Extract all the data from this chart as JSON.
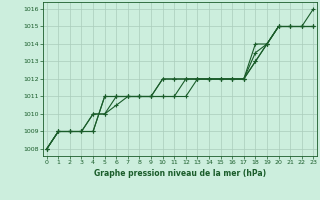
{
  "title": "Graphe pression niveau de la mer (hPa)",
  "bg_color": "#cceedd",
  "grid_color": "#aaccbb",
  "line_color": "#1a5c2a",
  "x_ticks": [
    0,
    1,
    2,
    3,
    4,
    5,
    6,
    7,
    8,
    9,
    10,
    11,
    12,
    13,
    14,
    15,
    16,
    17,
    18,
    19,
    20,
    21,
    22,
    23
  ],
  "y_ticks": [
    1008,
    1009,
    1010,
    1011,
    1012,
    1013,
    1014,
    1015,
    1016
  ],
  "ylim": [
    1007.6,
    1016.4
  ],
  "xlim": [
    -0.3,
    23.3
  ],
  "series": [
    [
      1008.0,
      1009.0,
      1009.0,
      1009.0,
      1009.0,
      1011.0,
      1011.0,
      1011.0,
      1011.0,
      1011.0,
      1012.0,
      1012.0,
      1012.0,
      1012.0,
      1012.0,
      1012.0,
      1012.0,
      1012.0,
      1013.5,
      1014.0,
      1015.0,
      1015.0,
      1015.0,
      1016.0
    ],
    [
      1008.0,
      1009.0,
      1009.0,
      1009.0,
      1010.0,
      1010.0,
      1010.5,
      1011.0,
      1011.0,
      1011.0,
      1011.0,
      1011.0,
      1012.0,
      1012.0,
      1012.0,
      1012.0,
      1012.0,
      1012.0,
      1014.0,
      1014.0,
      1015.0,
      1015.0,
      1015.0,
      1015.0
    ],
    [
      1008.0,
      1009.0,
      1009.0,
      1009.0,
      1009.0,
      1011.0,
      1011.0,
      1011.0,
      1011.0,
      1011.0,
      1011.0,
      1011.0,
      1011.0,
      1012.0,
      1012.0,
      1012.0,
      1012.0,
      1012.0,
      1013.0,
      1014.0,
      1015.0,
      1015.0,
      1015.0,
      1015.0
    ],
    [
      1008.0,
      1009.0,
      1009.0,
      1009.0,
      1010.0,
      1010.0,
      1011.0,
      1011.0,
      1011.0,
      1011.0,
      1012.0,
      1012.0,
      1012.0,
      1012.0,
      1012.0,
      1012.0,
      1012.0,
      1012.0,
      1013.0,
      1014.0,
      1015.0,
      1015.0,
      1015.0,
      1015.0
    ]
  ]
}
